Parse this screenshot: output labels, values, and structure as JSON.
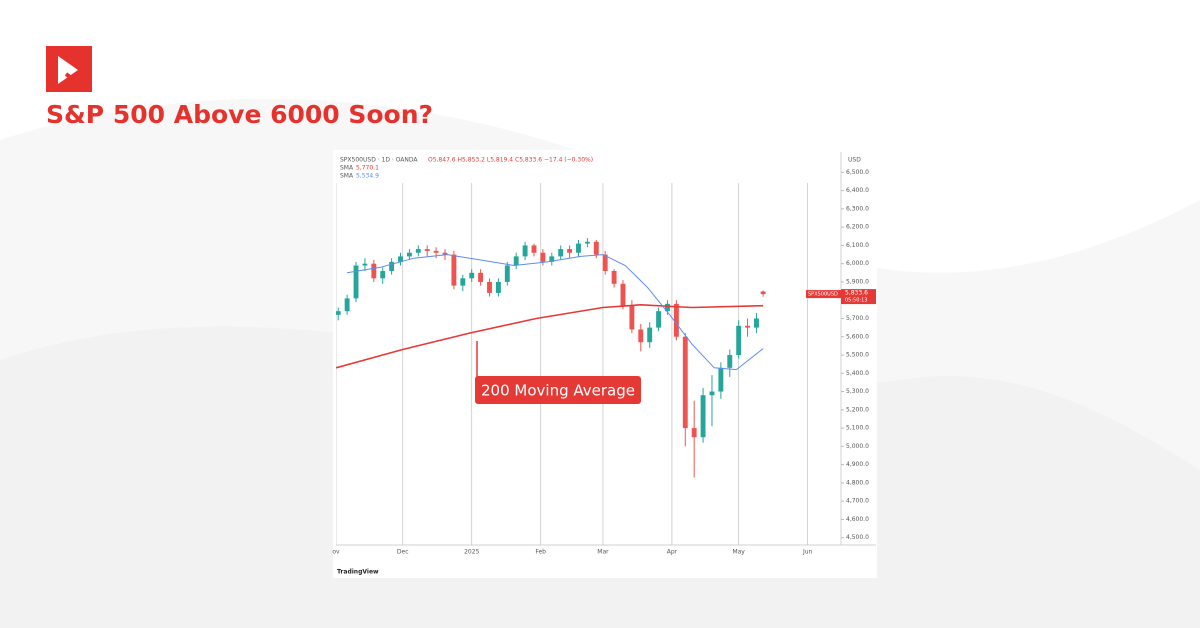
{
  "header": {
    "title": "S&P 500 Above 6000 Soon?"
  },
  "chart_data": {
    "type": "candlestick",
    "symbol": "SPX500USD · 1D · OANDA",
    "ohlc_label": "O5,847.6 H5,853.2 L5,819.4 C5,833.6 −17.4 (−0.30%)",
    "y_unit": "USD",
    "up_color": "#26a69a",
    "down_color": "#ef5350",
    "x": [
      1,
      5,
      9,
      13,
      17,
      21,
      25,
      29,
      33,
      37,
      41,
      45,
      49,
      53,
      57,
      61,
      65,
      69,
      73,
      77,
      81,
      85,
      89,
      93,
      97,
      101,
      105,
      109,
      113,
      117,
      121,
      125,
      129,
      133,
      137,
      141,
      145,
      149,
      153,
      157,
      161,
      165,
      169,
      173,
      177,
      181,
      185,
      189,
      192
    ],
    "open": [
      5720,
      5740,
      5810,
      5990,
      6000,
      5920,
      5960,
      6010,
      6040,
      6060,
      6080,
      6070,
      6060,
      6050,
      5880,
      5920,
      5950,
      5900,
      5840,
      5900,
      5990,
      6040,
      6100,
      6060,
      6010,
      6040,
      6080,
      6060,
      6110,
      6120,
      6050,
      5960,
      5890,
      5770,
      5640,
      5570,
      5650,
      5740,
      5780,
      5600,
      5100,
      5050,
      5280,
      5300,
      5430,
      5500,
      5660,
      5650,
      5847.6
    ],
    "high": [
      5760,
      5830,
      6010,
      6030,
      6020,
      5980,
      6030,
      6060,
      6080,
      6100,
      6100,
      6090,
      6080,
      6070,
      5940,
      5970,
      5970,
      5920,
      5920,
      6010,
      6060,
      6120,
      6110,
      6080,
      6060,
      6100,
      6100,
      6130,
      6140,
      6130,
      6070,
      5970,
      5910,
      5800,
      5670,
      5680,
      5760,
      5800,
      5800,
      5620,
      5250,
      5320,
      5390,
      5460,
      5530,
      5690,
      5700,
      5730,
      5853.2
    ],
    "low": [
      5690,
      5720,
      5790,
      5960,
      5900,
      5890,
      5940,
      5990,
      6020,
      6040,
      6040,
      6030,
      6020,
      5860,
      5850,
      5900,
      5880,
      5820,
      5820,
      5880,
      5970,
      6020,
      6040,
      5990,
      5990,
      6020,
      6030,
      6040,
      6090,
      6030,
      5940,
      5870,
      5750,
      5620,
      5520,
      5540,
      5630,
      5720,
      5580,
      5000,
      4830,
      5020,
      5110,
      5260,
      5380,
      5480,
      5600,
      5620,
      5819.4
    ],
    "close": [
      5740,
      5810,
      5990,
      6000,
      5920,
      5960,
      6010,
      6040,
      6060,
      6080,
      6070,
      6060,
      6050,
      5880,
      5920,
      5950,
      5900,
      5840,
      5900,
      5990,
      6040,
      6100,
      6060,
      6010,
      6040,
      6080,
      6060,
      6110,
      6120,
      6050,
      5960,
      5890,
      5770,
      5640,
      5570,
      5650,
      5740,
      5780,
      5600,
      5100,
      5050,
      5280,
      5300,
      5430,
      5500,
      5660,
      5650,
      5700,
      5833.6
    ],
    "overlays": [
      {
        "name": "SMA",
        "value_label": "5,770.1",
        "color": "#e53935",
        "x": [
          0,
          30,
          60,
          90,
          120,
          137,
          160,
          192
        ],
        "values": [
          5430,
          5530,
          5620,
          5700,
          5760,
          5775,
          5760,
          5770.1
        ]
      },
      {
        "name": "SMA",
        "value_label": "5,534.9",
        "color": "#5b8def",
        "x": [
          5,
          20,
          35,
          50,
          65,
          80,
          95,
          110,
          120,
          130,
          140,
          150,
          160,
          170,
          180,
          192
        ],
        "values": [
          5950,
          5980,
          6030,
          6050,
          6020,
          5990,
          6010,
          6040,
          6050,
          5990,
          5870,
          5720,
          5560,
          5430,
          5420,
          5534.9
        ]
      }
    ],
    "xlim": [
      0,
      227
    ],
    "xticks": [
      {
        "value": 0,
        "label": "ov"
      },
      {
        "value": 30,
        "label": "Dec"
      },
      {
        "value": 61,
        "label": "2025"
      },
      {
        "value": 92,
        "label": "Feb"
      },
      {
        "value": 120,
        "label": "Mar"
      },
      {
        "value": 151,
        "label": "Apr"
      },
      {
        "value": 181,
        "label": "May"
      },
      {
        "value": 212,
        "label": "Jun"
      }
    ],
    "ylim": [
      4460,
      6595
    ],
    "yticks": [
      {
        "value": 4500,
        "label": "4,500.0"
      },
      {
        "value": 4600,
        "label": "4,600.0"
      },
      {
        "value": 4700,
        "label": "4,700.0"
      },
      {
        "value": 4800,
        "label": "4,800.0"
      },
      {
        "value": 4900,
        "label": "4,900.0"
      },
      {
        "value": 5000,
        "label": "5,000.0"
      },
      {
        "value": 5100,
        "label": "5,100.0"
      },
      {
        "value": 5200,
        "label": "5,200.0"
      },
      {
        "value": 5300,
        "label": "5,300.0"
      },
      {
        "value": 5400,
        "label": "5,400.0"
      },
      {
        "value": 5500,
        "label": "5,500.0"
      },
      {
        "value": 5600,
        "label": "5,600.0"
      },
      {
        "value": 5700,
        "label": "5,700.0"
      },
      {
        "value": 5800,
        "label": "5,800.0"
      },
      {
        "value": 5900,
        "label": "5,900.0"
      },
      {
        "value": 6000,
        "label": "6,000.0"
      },
      {
        "value": 6100,
        "label": "6,100.0"
      },
      {
        "value": 6200,
        "label": "6,200.0"
      },
      {
        "value": 6300,
        "label": "6,300.0"
      },
      {
        "value": 6400,
        "label": "6,400.0"
      },
      {
        "value": 6500,
        "label": "6,500.0"
      }
    ],
    "x_grid": true,
    "price_tag": {
      "symbol": "SPX500USD",
      "price": "5,833.6",
      "countdown": "05:50:13"
    },
    "annotation": "200 Moving Average",
    "branding": "TradingView"
  }
}
